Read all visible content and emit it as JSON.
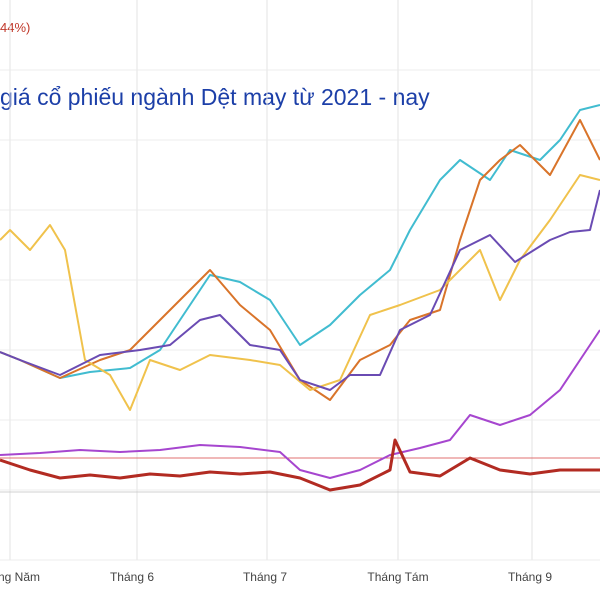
{
  "corner_label": "44%)",
  "chart_data": {
    "type": "line",
    "title": "giá cổ phiếu ngành Dệt may từ 2021 - nay",
    "categories": [
      "Năm",
      "Tháng 6",
      "Tháng 7",
      "Tháng Tám",
      "Tháng 9"
    ],
    "x_tick_labels": [
      "ng Năm",
      "Tháng 6",
      "Tháng 7",
      "Tháng Tám",
      "Tháng 9"
    ],
    "grid": true,
    "legend": "none",
    "series": [
      {
        "color": "#41bcd0",
        "values": [
          {
            "x": 0,
            "y": 352
          },
          {
            "x": 20,
            "y": 360
          },
          {
            "x": 60,
            "y": 378
          },
          {
            "x": 90,
            "y": 372
          },
          {
            "x": 130,
            "y": 368
          },
          {
            "x": 160,
            "y": 350
          },
          {
            "x": 180,
            "y": 320
          },
          {
            "x": 210,
            "y": 275
          },
          {
            "x": 240,
            "y": 282
          },
          {
            "x": 270,
            "y": 300
          },
          {
            "x": 300,
            "y": 345
          },
          {
            "x": 330,
            "y": 325
          },
          {
            "x": 360,
            "y": 295
          },
          {
            "x": 390,
            "y": 270
          },
          {
            "x": 410,
            "y": 230
          },
          {
            "x": 440,
            "y": 180
          },
          {
            "x": 460,
            "y": 160
          },
          {
            "x": 490,
            "y": 180
          },
          {
            "x": 510,
            "y": 150
          },
          {
            "x": 540,
            "y": 160
          },
          {
            "x": 560,
            "y": 140
          },
          {
            "x": 580,
            "y": 110
          },
          {
            "x": 600,
            "y": 105
          }
        ]
      },
      {
        "color": "#d9742a",
        "values": [
          {
            "x": 0,
            "y": 352
          },
          {
            "x": 20,
            "y": 360
          },
          {
            "x": 60,
            "y": 378
          },
          {
            "x": 100,
            "y": 360
          },
          {
            "x": 130,
            "y": 350
          },
          {
            "x": 160,
            "y": 320
          },
          {
            "x": 180,
            "y": 300
          },
          {
            "x": 210,
            "y": 270
          },
          {
            "x": 240,
            "y": 305
          },
          {
            "x": 270,
            "y": 330
          },
          {
            "x": 300,
            "y": 380
          },
          {
            "x": 330,
            "y": 400
          },
          {
            "x": 360,
            "y": 360
          },
          {
            "x": 390,
            "y": 345
          },
          {
            "x": 410,
            "y": 320
          },
          {
            "x": 440,
            "y": 310
          },
          {
            "x": 460,
            "y": 240
          },
          {
            "x": 480,
            "y": 180
          },
          {
            "x": 500,
            "y": 160
          },
          {
            "x": 520,
            "y": 145
          },
          {
            "x": 550,
            "y": 175
          },
          {
            "x": 580,
            "y": 120
          },
          {
            "x": 600,
            "y": 160
          }
        ]
      },
      {
        "color": "#f0c24c",
        "values": [
          {
            "x": 0,
            "y": 240
          },
          {
            "x": 10,
            "y": 230
          },
          {
            "x": 30,
            "y": 250
          },
          {
            "x": 50,
            "y": 225
          },
          {
            "x": 65,
            "y": 250
          },
          {
            "x": 85,
            "y": 360
          },
          {
            "x": 110,
            "y": 375
          },
          {
            "x": 130,
            "y": 410
          },
          {
            "x": 150,
            "y": 360
          },
          {
            "x": 180,
            "y": 370
          },
          {
            "x": 210,
            "y": 355
          },
          {
            "x": 250,
            "y": 360
          },
          {
            "x": 280,
            "y": 365
          },
          {
            "x": 310,
            "y": 390
          },
          {
            "x": 340,
            "y": 380
          },
          {
            "x": 370,
            "y": 315
          },
          {
            "x": 400,
            "y": 305
          },
          {
            "x": 440,
            "y": 290
          },
          {
            "x": 480,
            "y": 250
          },
          {
            "x": 500,
            "y": 300
          },
          {
            "x": 520,
            "y": 260
          },
          {
            "x": 550,
            "y": 220
          },
          {
            "x": 580,
            "y": 175
          },
          {
            "x": 600,
            "y": 180
          }
        ]
      },
      {
        "color": "#6a4bb3",
        "values": [
          {
            "x": 0,
            "y": 352
          },
          {
            "x": 20,
            "y": 360
          },
          {
            "x": 60,
            "y": 375
          },
          {
            "x": 100,
            "y": 355
          },
          {
            "x": 140,
            "y": 350
          },
          {
            "x": 170,
            "y": 345
          },
          {
            "x": 200,
            "y": 320
          },
          {
            "x": 220,
            "y": 315
          },
          {
            "x": 250,
            "y": 345
          },
          {
            "x": 280,
            "y": 350
          },
          {
            "x": 300,
            "y": 380
          },
          {
            "x": 330,
            "y": 390
          },
          {
            "x": 350,
            "y": 375
          },
          {
            "x": 380,
            "y": 375
          },
          {
            "x": 400,
            "y": 330
          },
          {
            "x": 430,
            "y": 315
          },
          {
            "x": 460,
            "y": 250
          },
          {
            "x": 490,
            "y": 235
          },
          {
            "x": 515,
            "y": 262
          },
          {
            "x": 550,
            "y": 240
          },
          {
            "x": 570,
            "y": 232
          },
          {
            "x": 590,
            "y": 230
          },
          {
            "x": 600,
            "y": 190
          }
        ]
      },
      {
        "color": "#a646cf",
        "values": [
          {
            "x": 0,
            "y": 455
          },
          {
            "x": 40,
            "y": 453
          },
          {
            "x": 80,
            "y": 450
          },
          {
            "x": 120,
            "y": 452
          },
          {
            "x": 160,
            "y": 450
          },
          {
            "x": 200,
            "y": 445
          },
          {
            "x": 240,
            "y": 447
          },
          {
            "x": 280,
            "y": 452
          },
          {
            "x": 300,
            "y": 470
          },
          {
            "x": 330,
            "y": 478
          },
          {
            "x": 360,
            "y": 470
          },
          {
            "x": 390,
            "y": 455
          },
          {
            "x": 420,
            "y": 448
          },
          {
            "x": 450,
            "y": 440
          },
          {
            "x": 470,
            "y": 415
          },
          {
            "x": 500,
            "y": 425
          },
          {
            "x": 530,
            "y": 415
          },
          {
            "x": 560,
            "y": 390
          },
          {
            "x": 580,
            "y": 360
          },
          {
            "x": 600,
            "y": 330
          }
        ]
      },
      {
        "color": "#b22b22",
        "values": [
          {
            "x": 0,
            "y": 460
          },
          {
            "x": 30,
            "y": 470
          },
          {
            "x": 60,
            "y": 478
          },
          {
            "x": 90,
            "y": 475
          },
          {
            "x": 120,
            "y": 478
          },
          {
            "x": 150,
            "y": 474
          },
          {
            "x": 180,
            "y": 476
          },
          {
            "x": 210,
            "y": 472
          },
          {
            "x": 240,
            "y": 474
          },
          {
            "x": 270,
            "y": 472
          },
          {
            "x": 300,
            "y": 478
          },
          {
            "x": 330,
            "y": 490
          },
          {
            "x": 360,
            "y": 485
          },
          {
            "x": 390,
            "y": 470
          },
          {
            "x": 395,
            "y": 440
          },
          {
            "x": 410,
            "y": 472
          },
          {
            "x": 440,
            "y": 476
          },
          {
            "x": 470,
            "y": 458
          },
          {
            "x": 500,
            "y": 470
          },
          {
            "x": 530,
            "y": 474
          },
          {
            "x": 560,
            "y": 470
          },
          {
            "x": 600,
            "y": 470
          }
        ]
      }
    ]
  }
}
